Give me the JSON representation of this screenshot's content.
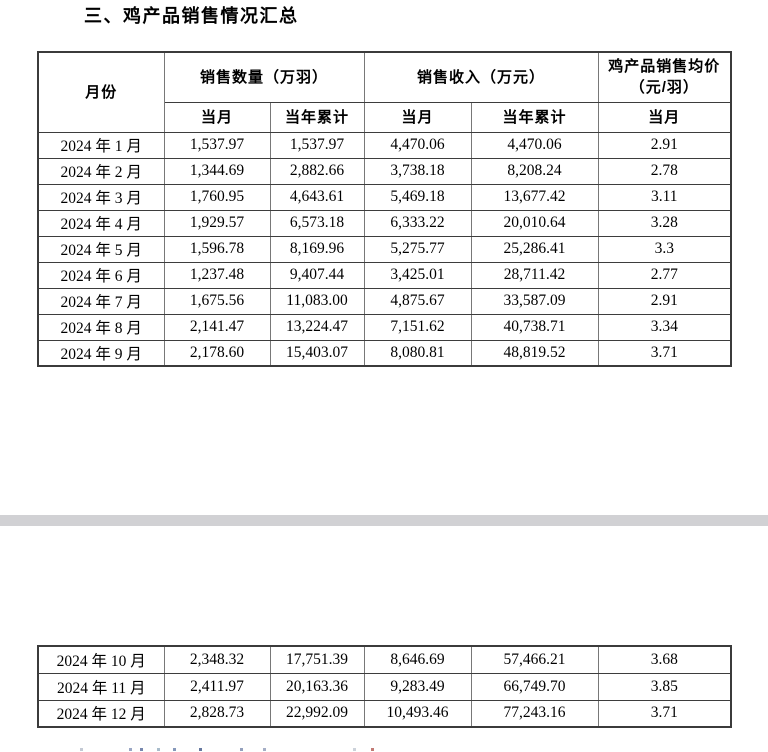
{
  "section_title": "三、鸡产品销售情况汇总",
  "table": {
    "header_groups": {
      "month": "月份",
      "quantity": "销售数量（万羽）",
      "revenue": "销售收入（万元）",
      "avg_price": "鸡产品销售均价（元/羽）"
    },
    "sub_headers": [
      "当月",
      "当年累计",
      "当月",
      "当年累计",
      "当月"
    ],
    "rows_page1": [
      [
        "2024 年 1 月",
        "1,537.97",
        "1,537.97",
        "4,470.06",
        "4,470.06",
        "2.91"
      ],
      [
        "2024 年 2 月",
        "1,344.69",
        "2,882.66",
        "3,738.18",
        "8,208.24",
        "2.78"
      ],
      [
        "2024 年 3 月",
        "1,760.95",
        "4,643.61",
        "5,469.18",
        "13,677.42",
        "3.11"
      ],
      [
        "2024 年 4 月",
        "1,929.57",
        "6,573.18",
        "6,333.22",
        "20,010.64",
        "3.28"
      ],
      [
        "2024 年 5 月",
        "1,596.78",
        "8,169.96",
        "5,275.77",
        "25,286.41",
        "3.3"
      ],
      [
        "2024 年 6 月",
        "1,237.48",
        "9,407.44",
        "3,425.01",
        "28,711.42",
        "2.77"
      ],
      [
        "2024 年 7 月",
        "1,675.56",
        "11,083.00",
        "4,875.67",
        "33,587.09",
        "2.91"
      ],
      [
        "2024 年 8 月",
        "2,141.47",
        "13,224.47",
        "7,151.62",
        "40,738.71",
        "3.34"
      ],
      [
        "2024 年 9 月",
        "2,178.60",
        "15,403.07",
        "8,080.81",
        "48,819.52",
        "3.71"
      ]
    ],
    "rows_page2": [
      [
        "2024 年 10 月",
        "2,348.32",
        "17,751.39",
        "8,646.69",
        "57,466.21",
        "3.68"
      ],
      [
        "2024 年 11 月",
        "2,411.97",
        "20,163.36",
        "9,283.49",
        "66,749.70",
        "3.85"
      ],
      [
        "2024 年 12 月",
        "2,828.73",
        "22,992.09",
        "10,493.46",
        "77,243.16",
        "3.71"
      ]
    ]
  },
  "colors": {
    "page_background": "#ffffff",
    "page_gap_gray": "#d1d1d4",
    "border_dark": "#3d3d3d",
    "text": "#000000"
  }
}
